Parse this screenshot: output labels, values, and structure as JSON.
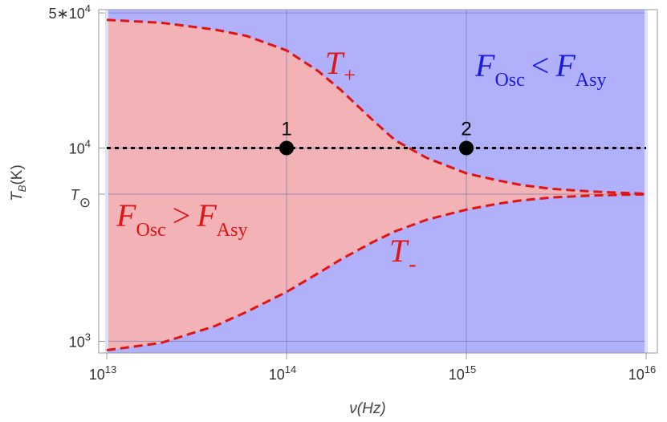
{
  "chart_data": {
    "type": "area",
    "xlabel": "ν(Hz)",
    "ylabel": "T_B(K)",
    "x_scale": "log",
    "y_scale": "log",
    "xlim": [
      10000000000000.0,
      1e+16
    ],
    "ylim": [
      870,
      52000
    ],
    "grid": true,
    "x_ticks": [
      {
        "value": 10000000000000.0,
        "base": "10",
        "exp": "13"
      },
      {
        "value": 100000000000000.0,
        "base": "10",
        "exp": "14"
      },
      {
        "value": 1000000000000000.0,
        "base": "10",
        "exp": "15"
      },
      {
        "value": 1e+16,
        "base": "10",
        "exp": "16"
      }
    ],
    "y_ticks": [
      {
        "value": 50000,
        "base": "5∗10",
        "exp": "4"
      },
      {
        "value": 10000,
        "base": "10",
        "exp": "4"
      },
      {
        "value": 5772,
        "symbol": "T",
        "sub": "⊙"
      },
      {
        "value": 1000,
        "base": "10",
        "exp": "3"
      }
    ],
    "series": [
      {
        "name": "T+",
        "style": "dashed",
        "color": "#e01414",
        "x": [
          10000000000000.0,
          20000000000000.0,
          40000000000000.0,
          60000000000000.0,
          100000000000000.0,
          150000000000000.0,
          200000000000000.0,
          300000000000000.0,
          400000000000000.0,
          600000000000000.0,
          1000000000000000.0,
          1500000000000000.0,
          2000000000000000.0,
          3000000000000000.0,
          5000000000000000.0,
          1e+16
        ],
        "y": [
          46000,
          44500,
          41000,
          38000,
          32000,
          25000,
          20000,
          14000,
          11000,
          8900,
          7400,
          6800,
          6450,
          6150,
          5950,
          5800
        ]
      },
      {
        "name": "T-",
        "style": "dashed",
        "color": "#e01414",
        "x": [
          10000000000000.0,
          20000000000000.0,
          40000000000000.0,
          60000000000000.0,
          100000000000000.0,
          150000000000000.0,
          200000000000000.0,
          300000000000000.0,
          400000000000000.0,
          600000000000000.0,
          1000000000000000.0,
          1500000000000000.0,
          2000000000000000.0,
          3000000000000000.0,
          5000000000000000.0,
          1e+16
        ],
        "y": [
          900,
          980,
          1200,
          1420,
          1800,
          2250,
          2650,
          3250,
          3700,
          4250,
          4800,
          5150,
          5350,
          5550,
          5680,
          5760
        ]
      },
      {
        "name": "",
        "style": "dotted",
        "color": "#000000",
        "x": [
          10000000000000.0,
          1e+16
        ],
        "y": [
          10000,
          10000
        ]
      }
    ],
    "points": [
      {
        "label": "1",
        "x": 100000000000000.0,
        "y": 10000
      },
      {
        "label": "2",
        "x": 1000000000000000.0,
        "y": 10000
      }
    ],
    "region_labels": {
      "upper": {
        "F": "F",
        "sub1": "Osc",
        "op": "<",
        "sub2": "Asy"
      },
      "lower": {
        "F": "F",
        "sub1": "Osc",
        "op": ">",
        "sub2": "Asy"
      }
    },
    "curve_labels": {
      "plus": {
        "T": "T",
        "sub": "+"
      },
      "minus": {
        "T": "T",
        "sub": "-"
      }
    },
    "colors": {
      "region_between": "#f2b2b6",
      "region_outside": "#b0b0fb",
      "curve": "#e01414",
      "upper_region_text": "#1a1ae6",
      "lower_region_text": "#e01414"
    }
  }
}
